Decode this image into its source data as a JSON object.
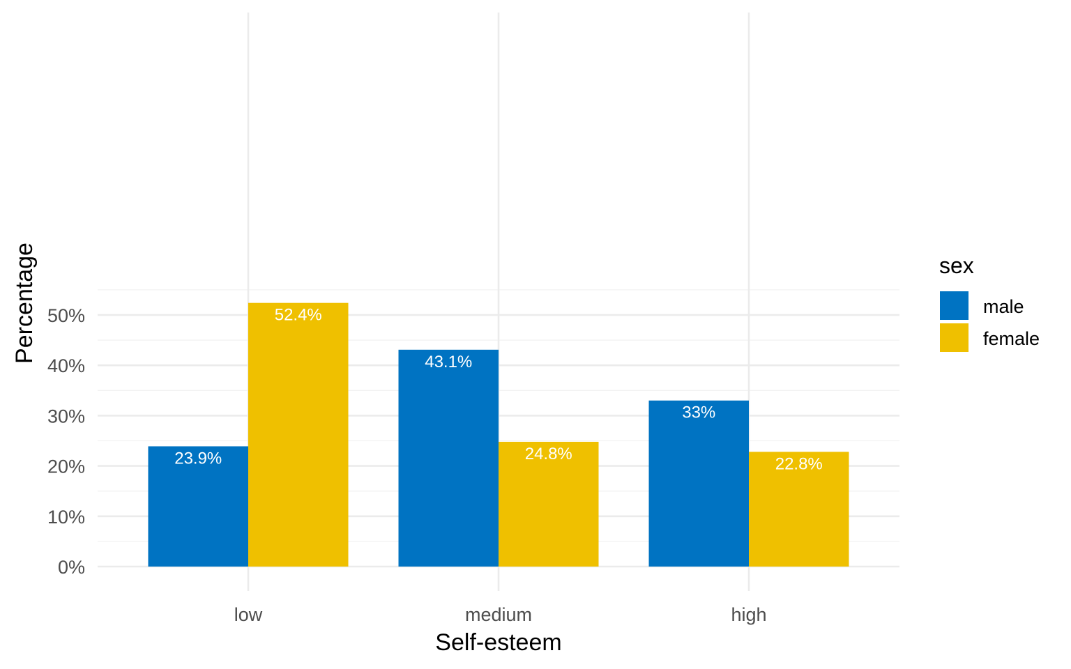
{
  "chart_data": {
    "type": "bar",
    "title": "",
    "xlabel": "Self-esteem",
    "ylabel": "Percentage",
    "categories": [
      "low",
      "medium",
      "high"
    ],
    "series": [
      {
        "name": "male",
        "color": "#0073C2",
        "values": [
          23.9,
          43.1,
          33.0
        ],
        "labels": [
          "23.9%",
          "43.1%",
          "33%"
        ]
      },
      {
        "name": "female",
        "color": "#EFC000",
        "values": [
          52.4,
          24.8,
          22.8
        ],
        "labels": [
          "52.4%",
          "24.8%",
          "22.8%"
        ]
      }
    ],
    "ylim": [
      0,
      55
    ],
    "yticks": [
      0,
      10,
      20,
      30,
      40,
      50
    ],
    "ytick_labels": [
      "0%",
      "10%",
      "20%",
      "30%",
      "40%",
      "50%"
    ],
    "grid": true,
    "legend": {
      "title": "sex",
      "position": "right"
    }
  }
}
